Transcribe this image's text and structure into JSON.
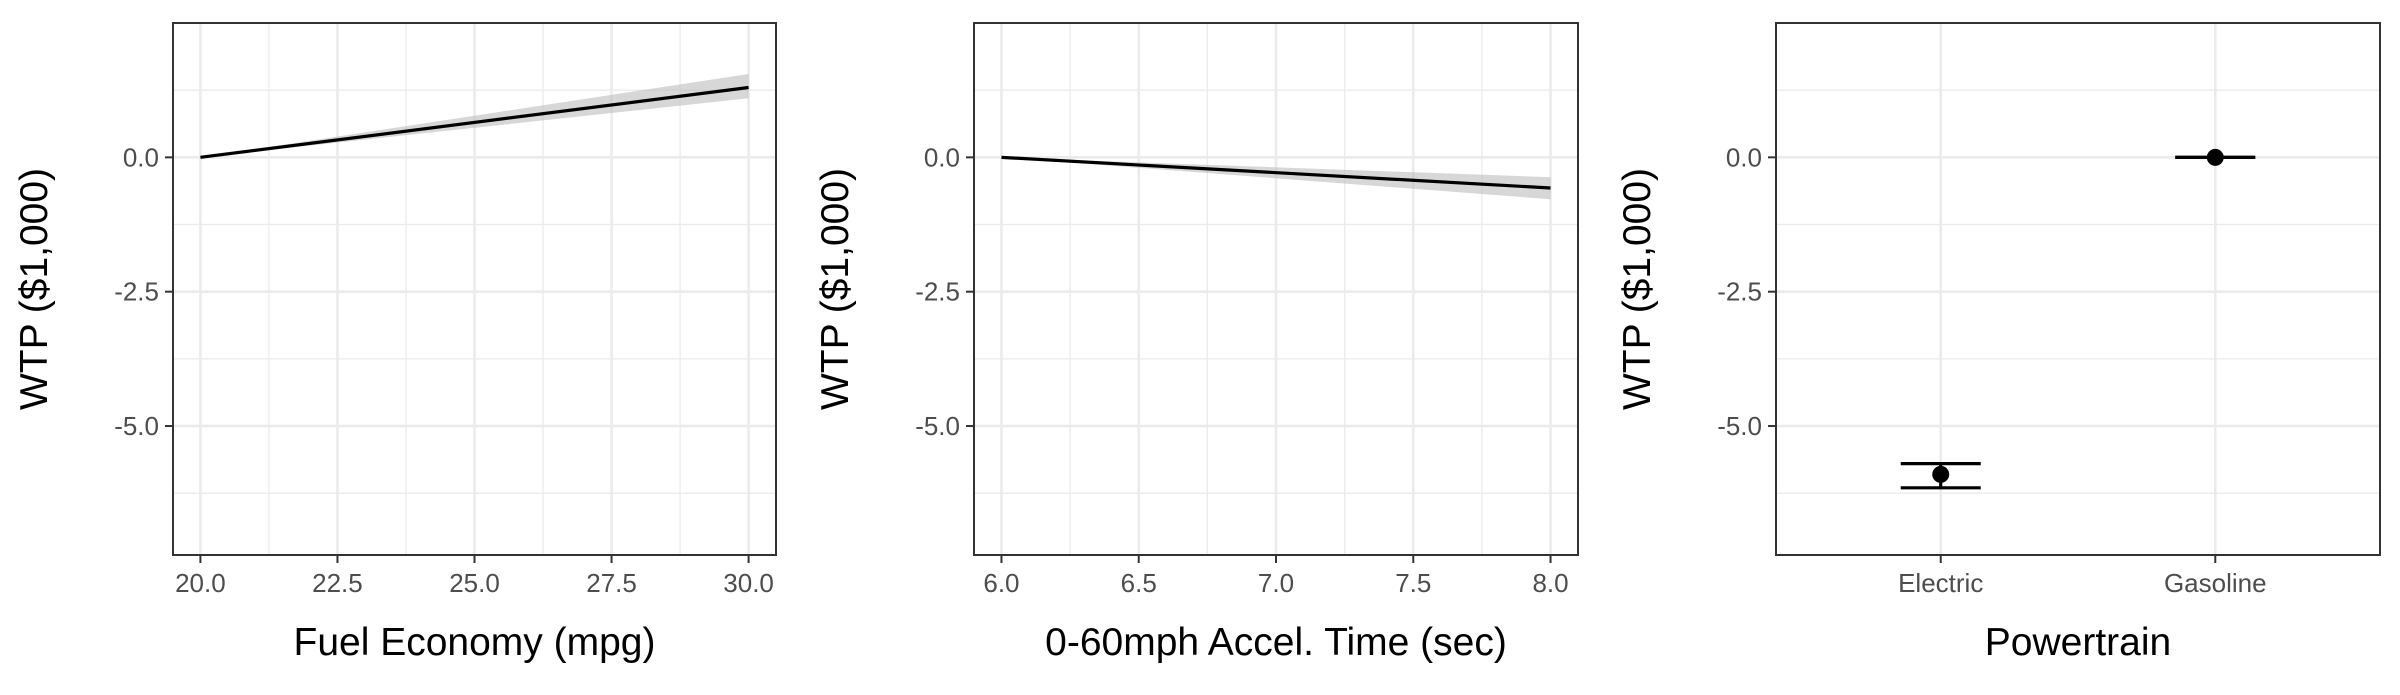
{
  "chart_data": [
    {
      "type": "line",
      "xlabel": "Fuel Economy (mpg)",
      "ylabel": "WTP ($1,000)",
      "xlim": [
        19.5,
        30.5
      ],
      "ylim": [
        -7.4,
        2.5
      ],
      "xticks": [
        20.0,
        22.5,
        25.0,
        27.5,
        30.0
      ],
      "xtick_labels": [
        "20.0",
        "22.5",
        "25.0",
        "27.5",
        "30.0"
      ],
      "yticks": [
        0.0,
        -2.5,
        -5.0
      ],
      "ytick_labels": [
        "0.0",
        "-2.5",
        "-5.0"
      ],
      "grid": true,
      "series": [
        {
          "x": [
            20.0,
            30.0
          ],
          "y": [
            0.0,
            1.3
          ],
          "ci_lower": [
            0.0,
            1.1
          ],
          "ci_upper": [
            0.0,
            1.55
          ]
        }
      ]
    },
    {
      "type": "line",
      "xlabel": "0-60mph Accel. Time (sec)",
      "ylabel": "WTP ($1,000)",
      "xlim": [
        5.9,
        8.1
      ],
      "ylim": [
        -7.4,
        2.5
      ],
      "xticks": [
        6.0,
        6.5,
        7.0,
        7.5,
        8.0
      ],
      "xtick_labels": [
        "6.0",
        "6.5",
        "7.0",
        "7.5",
        "8.0"
      ],
      "yticks": [
        0.0,
        -2.5,
        -5.0
      ],
      "ytick_labels": [
        "0.0",
        "-2.5",
        "-5.0"
      ],
      "grid": true,
      "series": [
        {
          "x": [
            6.0,
            8.0
          ],
          "y": [
            0.0,
            -0.57
          ],
          "ci_lower": [
            0.0,
            -0.78
          ],
          "ci_upper": [
            0.0,
            -0.37
          ]
        }
      ]
    },
    {
      "type": "scatter",
      "xlabel": "Powertrain",
      "ylabel": "WTP ($1,000)",
      "categories": [
        "Electric",
        "Gasoline"
      ],
      "ylim": [
        -7.4,
        2.5
      ],
      "yticks": [
        0.0,
        -2.5,
        -5.0
      ],
      "ytick_labels": [
        "0.0",
        "-2.5",
        "-5.0"
      ],
      "grid": true,
      "series": [
        {
          "values": [
            -5.9,
            0.0
          ],
          "ci_lower": [
            -6.15,
            0.0
          ],
          "ci_upper": [
            -5.7,
            0.0
          ]
        }
      ]
    }
  ]
}
